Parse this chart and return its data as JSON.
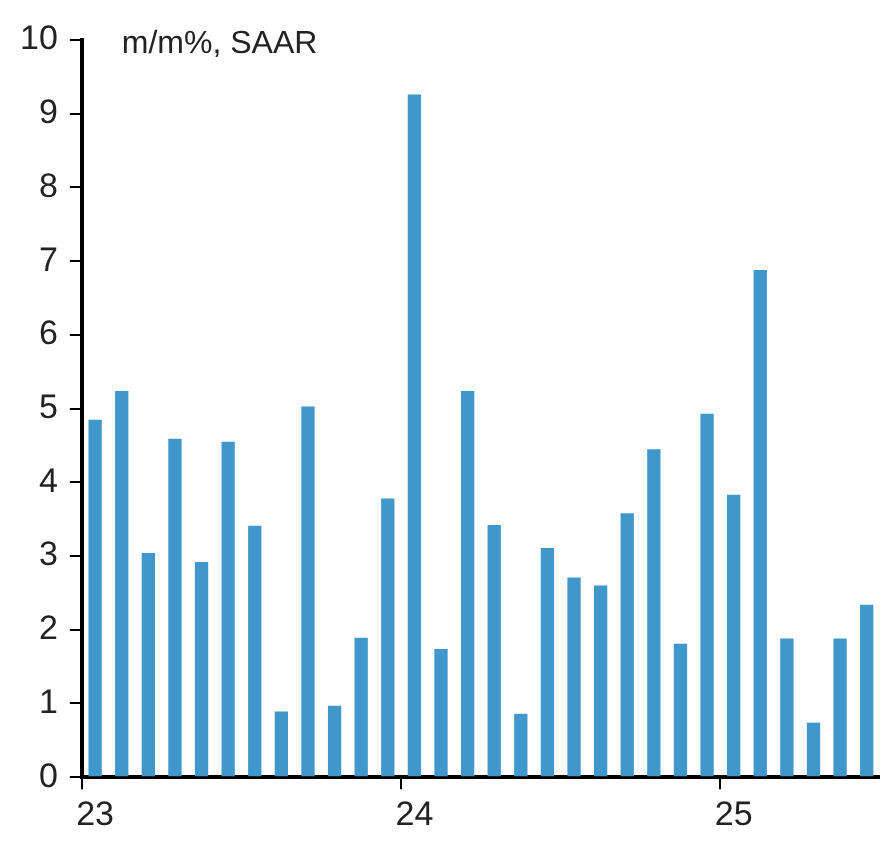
{
  "chart_data": {
    "type": "bar",
    "ylabel": "m/m%, SAAR",
    "categories": [
      "23",
      null,
      null,
      null,
      null,
      null,
      null,
      null,
      null,
      null,
      null,
      null,
      "24",
      null,
      null,
      null,
      null,
      null,
      null,
      null,
      null,
      null,
      null,
      null,
      "25",
      null,
      null,
      null,
      null,
      null
    ],
    "values": [
      4.85,
      5.24,
      3.04,
      4.59,
      2.92,
      4.55,
      3.41,
      0.89,
      5.03,
      0.97,
      1.89,
      3.78,
      9.26,
      1.74,
      5.24,
      3.42,
      0.86,
      3.11,
      2.71,
      2.6,
      3.58,
      4.45,
      1.81,
      4.93,
      3.83,
      6.88,
      1.88,
      0.74,
      1.88,
      2.34
    ],
    "color": "#3f97cb",
    "ylim": [
      0,
      10
    ],
    "yticks": [
      0,
      1,
      2,
      3,
      4,
      5,
      6,
      7,
      8,
      9,
      10
    ],
    "grid": false,
    "legend": false
  }
}
